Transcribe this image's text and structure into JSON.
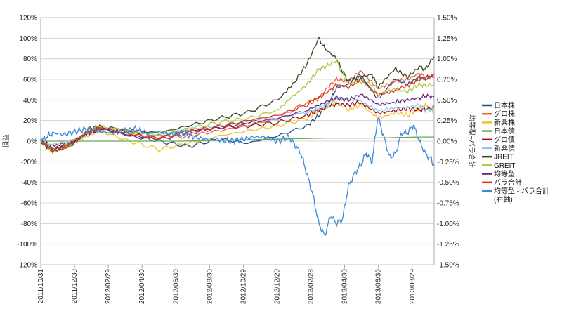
{
  "chart_data": {
    "type": "line",
    "y_left": {
      "label": "損益",
      "ticks": [
        "120%",
        "100%",
        "80%",
        "60%",
        "40%",
        "20%",
        "0%",
        "-20%",
        "-40%",
        "-60%",
        "-80%",
        "-100%",
        "-120%"
      ],
      "range": [
        -120,
        120
      ]
    },
    "y_right": {
      "label": "均等型−バラ合計",
      "ticks": [
        "1.50%",
        "1.25%",
        "1.00%",
        "0.75%",
        "0.50%",
        "0.25%",
        "0.00%",
        "-0.25%",
        "-0.50%",
        "-0.75%",
        "-1.00%",
        "-1.25%",
        "-1.50%"
      ],
      "range": [
        -1.5,
        1.5
      ]
    },
    "x_ticks": [
      "2011/10/31",
      "2011/12/30",
      "2012/02/29",
      "2012/04/30",
      "2012/06/30",
      "2012/08/30",
      "2012/10/29",
      "2012/12/29",
      "2013/02/28",
      "2013/04/30",
      "2013/06/30",
      "2013/08/29"
    ],
    "series": [
      {
        "name": "日本株",
        "color": "#1f4e8c",
        "axis": "left",
        "x": [
          0,
          2,
          5,
          8,
          10,
          15,
          20,
          25,
          30,
          35,
          40,
          45,
          47,
          49,
          50,
          52,
          54,
          57,
          60,
          62,
          64,
          65,
          66.5
        ],
        "y": [
          0,
          -8,
          -2,
          8,
          13,
          5,
          0,
          -5,
          2,
          -2,
          5,
          15,
          25,
          40,
          52,
          55,
          65,
          40,
          60,
          55,
          62,
          60,
          65
        ]
      },
      {
        "name": "グロ株",
        "color": "#e8603c",
        "axis": "left",
        "x": [
          0,
          2,
          5,
          8,
          10,
          15,
          20,
          25,
          30,
          35,
          40,
          45,
          47,
          49,
          50,
          52,
          54,
          57,
          60,
          62,
          64,
          65,
          66.5
        ],
        "y": [
          0,
          -10,
          -3,
          10,
          14,
          8,
          3,
          5,
          10,
          15,
          22,
          38,
          42,
          55,
          60,
          58,
          68,
          50,
          58,
          60,
          66,
          62,
          64
        ]
      },
      {
        "name": "新興株",
        "color": "#f2c12e",
        "axis": "left",
        "x": [
          0,
          2,
          5,
          8,
          10,
          15,
          20,
          25,
          30,
          35,
          40,
          45,
          47,
          49,
          50,
          52,
          54,
          57,
          60,
          62,
          64,
          65,
          66.5
        ],
        "y": [
          0,
          -10,
          -4,
          5,
          10,
          0,
          -8,
          -2,
          5,
          10,
          15,
          22,
          30,
          35,
          38,
          30,
          35,
          22,
          28,
          25,
          32,
          35,
          28
        ]
      },
      {
        "name": "日本債",
        "color": "#6aa84f",
        "axis": "left",
        "x": [
          0,
          8,
          16,
          24,
          32,
          40,
          48,
          56,
          64,
          66.5
        ],
        "y": [
          0,
          0,
          0,
          0,
          1,
          2,
          3,
          3,
          4,
          4
        ]
      },
      {
        "name": "グロ債",
        "color": "#a0141e",
        "axis": "left",
        "x": [
          0,
          2,
          5,
          8,
          10,
          15,
          20,
          25,
          30,
          35,
          40,
          45,
          47,
          49,
          50,
          52,
          54,
          57,
          60,
          62,
          64,
          65,
          66.5
        ],
        "y": [
          0,
          -5,
          -2,
          8,
          11,
          10,
          5,
          10,
          13,
          15,
          18,
          25,
          30,
          34,
          36,
          35,
          38,
          28,
          30,
          32,
          30,
          31,
          33
        ]
      },
      {
        "name": "新興債",
        "color": "#8fc8f0",
        "axis": "left",
        "x": [
          0,
          2,
          5,
          8,
          10,
          15,
          20,
          25,
          30,
          35,
          40,
          45,
          47,
          49,
          50,
          52,
          54,
          57,
          60,
          62,
          64,
          65,
          66.5
        ],
        "y": [
          0,
          -4,
          0,
          8,
          12,
          10,
          6,
          12,
          15,
          18,
          22,
          28,
          32,
          38,
          42,
          40,
          40,
          30,
          32,
          33,
          35,
          30,
          32
        ]
      },
      {
        "name": "JREIT",
        "color": "#3b4a1e",
        "axis": "left",
        "x": [
          0,
          2,
          5,
          8,
          10,
          15,
          20,
          25,
          30,
          35,
          40,
          43,
          45,
          47,
          48,
          50,
          51,
          52,
          54,
          56,
          57,
          60,
          62,
          64,
          65,
          66.5
        ],
        "y": [
          0,
          -10,
          -5,
          12,
          14,
          10,
          8,
          15,
          22,
          28,
          40,
          58,
          75,
          100,
          90,
          80,
          68,
          58,
          62,
          65,
          52,
          70,
          62,
          72,
          70,
          82
        ]
      },
      {
        "name": "GREIT",
        "color": "#a8c83c",
        "axis": "left",
        "x": [
          0,
          2,
          5,
          8,
          10,
          15,
          20,
          25,
          30,
          35,
          40,
          43,
          45,
          47,
          48,
          50,
          51,
          52,
          54,
          56,
          57,
          60,
          62,
          64,
          65,
          66.5
        ],
        "y": [
          0,
          -8,
          -3,
          10,
          14,
          10,
          5,
          12,
          18,
          22,
          30,
          45,
          55,
          70,
          72,
          78,
          65,
          55,
          58,
          55,
          45,
          50,
          48,
          55,
          54,
          55
        ]
      },
      {
        "name": "均等型",
        "color": "#6a2a7a",
        "axis": "left",
        "x": [
          0,
          2,
          5,
          8,
          10,
          15,
          20,
          25,
          30,
          35,
          40,
          45,
          47,
          49,
          50,
          52,
          54,
          57,
          60,
          62,
          64,
          65,
          66.5
        ],
        "y": [
          0,
          -8,
          -2,
          8,
          12,
          6,
          2,
          8,
          13,
          18,
          22,
          30,
          35,
          40,
          42,
          40,
          45,
          35,
          38,
          40,
          42,
          44,
          43
        ]
      },
      {
        "name": "バラ合計",
        "color": "#d83a1e",
        "axis": "left",
        "x": [
          0,
          2,
          5,
          8,
          10,
          15,
          20,
          25,
          30,
          35,
          40,
          45,
          47,
          49,
          50,
          52,
          54,
          57,
          60,
          62,
          64,
          65,
          66.5
        ],
        "y": [
          0,
          -9,
          -3,
          9,
          13,
          7,
          3,
          9,
          14,
          20,
          25,
          35,
          42,
          50,
          55,
          52,
          60,
          45,
          50,
          54,
          60,
          62,
          62
        ]
      },
      {
        "name": "均等型 - バラ合計\n(右軸)",
        "color": "#3a8ad4",
        "axis": "right",
        "x": [
          0,
          1,
          2,
          4,
          6,
          8,
          10,
          12,
          14,
          16,
          18,
          20,
          22,
          24,
          26,
          28,
          30,
          32,
          34,
          36,
          38,
          40,
          42,
          43,
          44,
          45,
          46,
          47,
          48,
          49,
          50,
          51,
          52,
          53,
          54,
          55,
          56,
          57,
          58,
          59,
          60,
          61,
          62,
          63,
          64,
          65,
          66,
          66.5
        ],
        "y": [
          0,
          0.05,
          0.1,
          0.08,
          0.12,
          0.15,
          0.12,
          0.1,
          0.12,
          0.15,
          0.1,
          0.12,
          0.08,
          0.1,
          0.05,
          0.02,
          0.02,
          0.0,
          0.02,
          0.05,
          0.05,
          0.0,
          0.05,
          -0.05,
          -0.15,
          -0.4,
          -0.65,
          -1.0,
          -1.15,
          -0.9,
          -1.0,
          -0.95,
          -0.55,
          -0.4,
          -0.3,
          -0.15,
          -0.25,
          0.3,
          0.05,
          -0.2,
          -0.15,
          0.1,
          0.1,
          0.2,
          0.0,
          -0.15,
          -0.22,
          -0.3
        ]
      }
    ],
    "legend": {
      "placement": "right"
    },
    "grid": true
  }
}
